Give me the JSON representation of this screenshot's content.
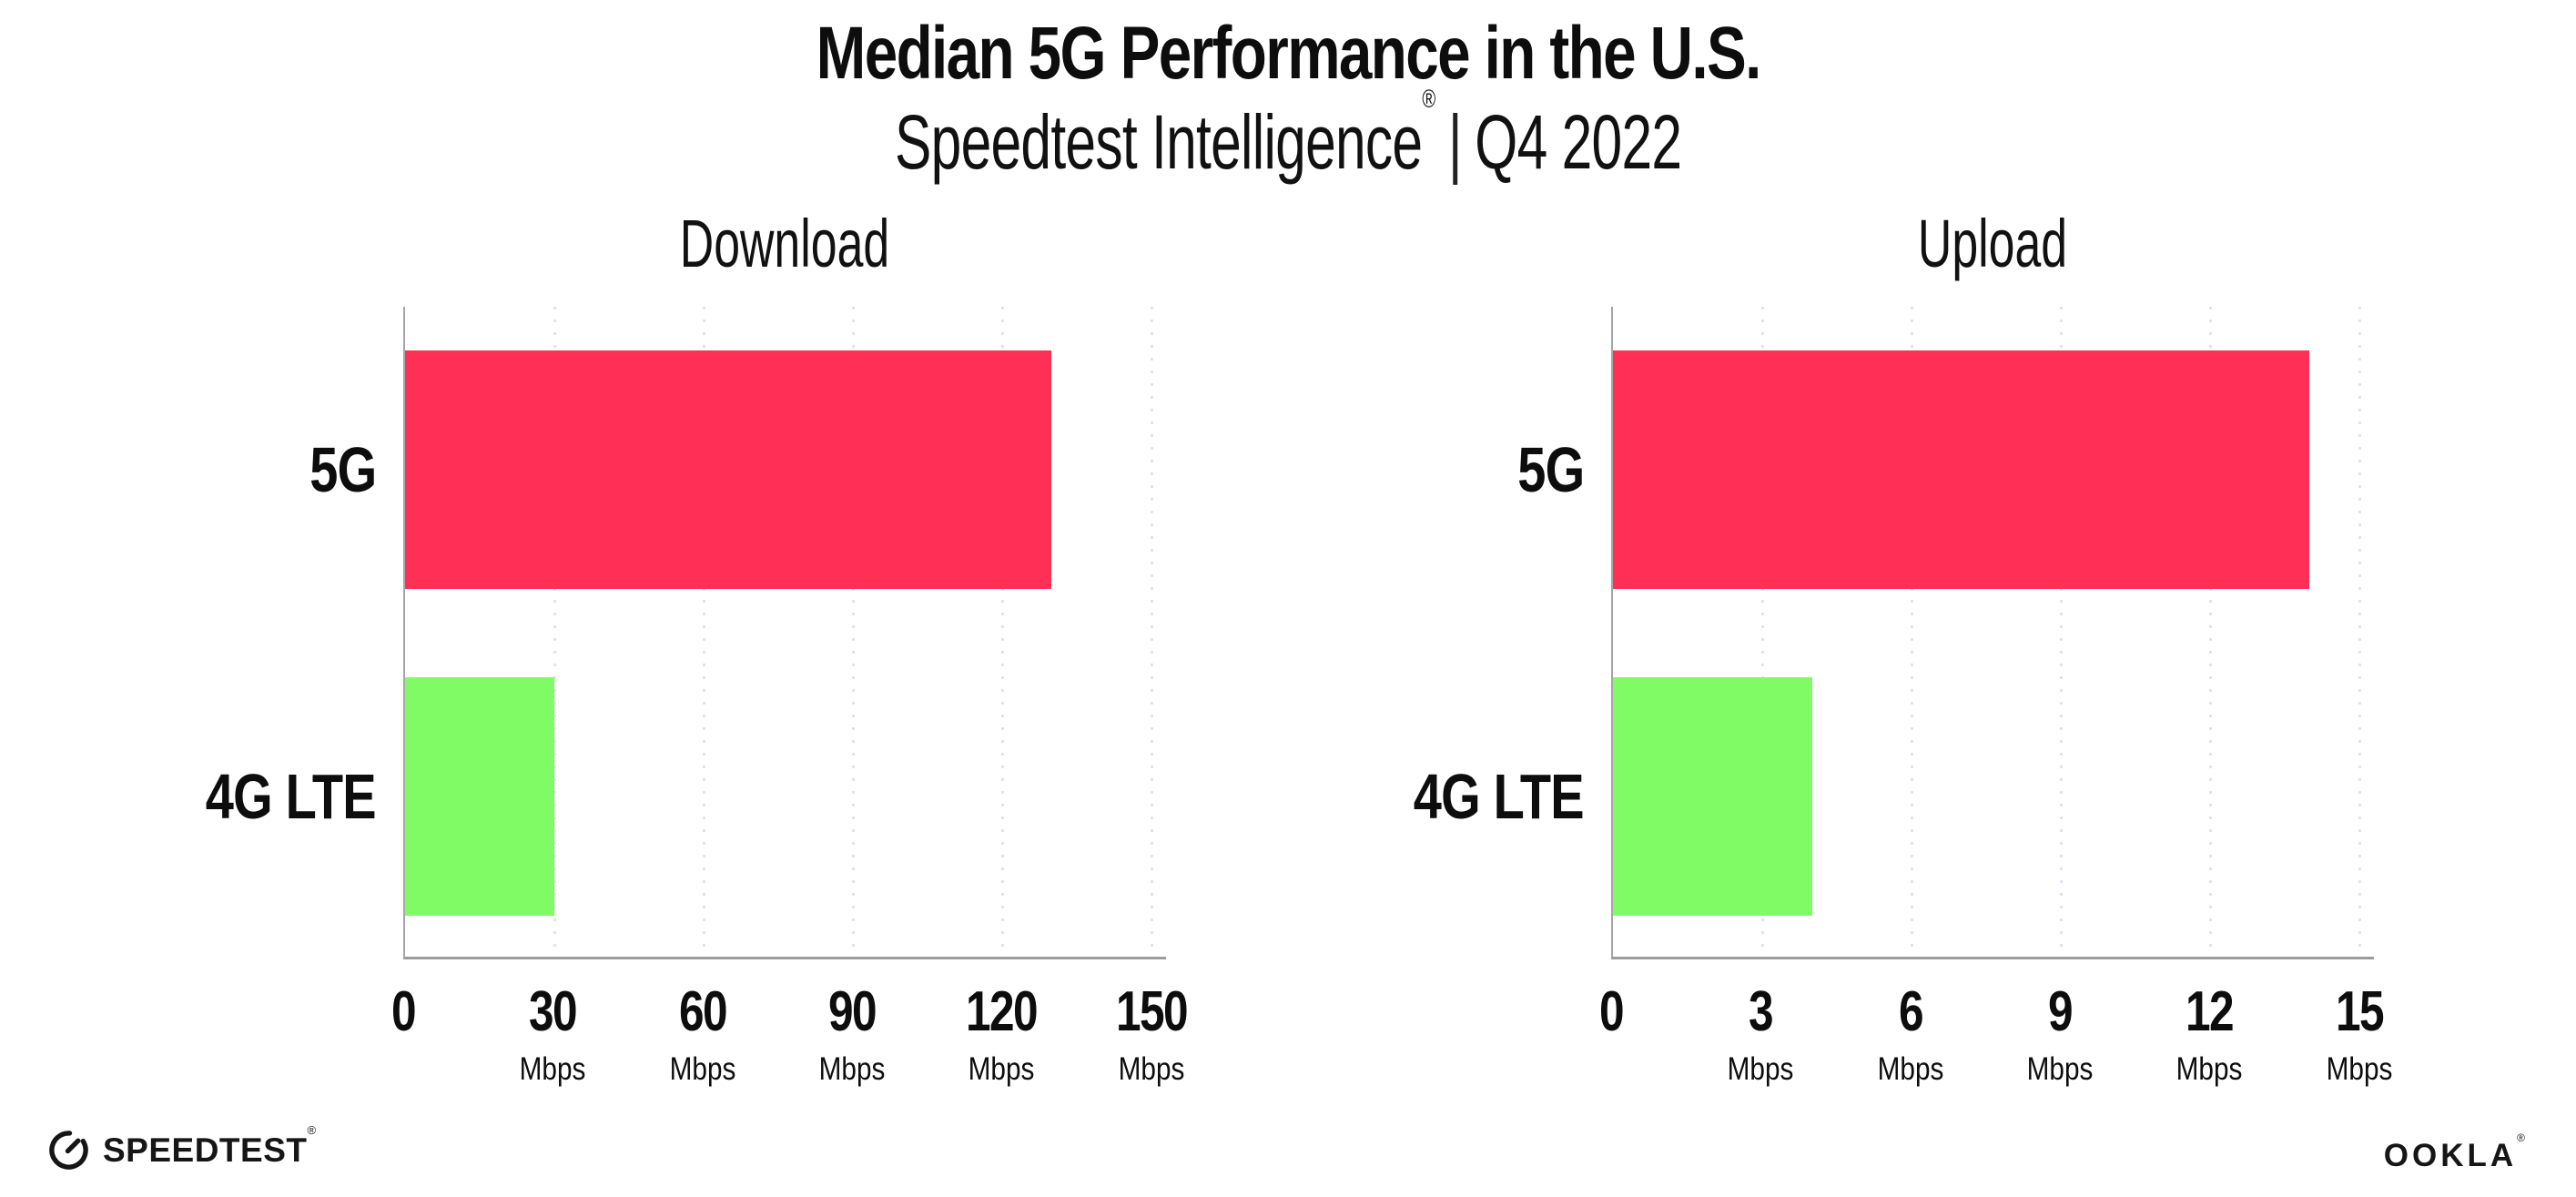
{
  "header": {
    "title": "Median 5G Performance in the U.S.",
    "subtitle_brand": "Speedtest Intelligence",
    "subtitle_reg": "®",
    "subtitle_sep": "|",
    "subtitle_period": "Q4 2022"
  },
  "colors": {
    "bar_5g": "#ff2f55",
    "bar_4g_lte": "#80fb66",
    "gridline": "#e2e2ec",
    "axis": "#9c9c9c",
    "text": "#0d0d0d"
  },
  "chart_data": [
    {
      "type": "bar",
      "orientation": "horizontal",
      "title": "Download",
      "categories": [
        "5G",
        "4G LTE"
      ],
      "values": [
        130,
        30
      ],
      "unit": "Mbps",
      "xticks": [
        0,
        30,
        60,
        90,
        120,
        150
      ],
      "xlim": [
        0,
        153
      ],
      "bar_colors": [
        "#ff2f55",
        "#80fb66"
      ],
      "grid": "dotted-vertical",
      "legend": "none"
    },
    {
      "type": "bar",
      "orientation": "horizontal",
      "title": "Upload",
      "categories": [
        "5G",
        "4G LTE"
      ],
      "values": [
        14,
        4
      ],
      "unit": "Mbps",
      "xticks": [
        0,
        3,
        6,
        9,
        12,
        15
      ],
      "xlim": [
        0,
        15.3
      ],
      "bar_colors": [
        "#ff2f55",
        "#80fb66"
      ],
      "grid": "dotted-vertical",
      "legend": "none"
    }
  ],
  "footer": {
    "speedtest_label": "SPEEDTEST",
    "speedtest_reg": "®",
    "ookla_label": "OOKLA",
    "ookla_reg": "®"
  }
}
